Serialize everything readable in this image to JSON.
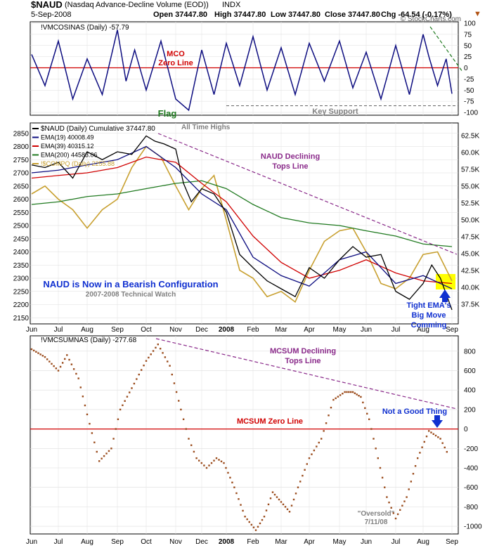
{
  "header": {
    "symbol": "$NAUD",
    "description": "(Nasdaq Advance-Decline Volume (EOD))",
    "exchange": "INDX",
    "date": "5-Sep-2008",
    "open": "Open 37447.80",
    "high": "High 37447.80",
    "low": "Low 37447.80",
    "close": "Close 37447.80",
    "chg": "Chg -64.54 (-0.17%)",
    "watermark": "© StockCharts.com"
  },
  "colors": {
    "navy": "#0d0d80",
    "red": "#d00000",
    "green": "#207a20",
    "gold": "#c8a030",
    "purple": "#8a2a8a",
    "brown": "#9a4a1a",
    "yellow": "#ffff00",
    "blue": "#1030d0"
  },
  "x_axis": {
    "labels": [
      "Jun",
      "Jul",
      "Aug",
      "Sep",
      "Oct",
      "Nov",
      "Dec",
      "2008",
      "Feb",
      "Mar",
      "Apr",
      "May",
      "Jun",
      "Jul",
      "Aug",
      "Sep"
    ]
  },
  "chart_data": [
    {
      "type": "line",
      "panel": "mco",
      "legend": "!VMCOSINAS (Daily) -57.79",
      "ylim": [
        -100,
        100
      ],
      "yticks": [
        "100",
        "75",
        "50",
        "25",
        "0",
        "-25",
        "-50",
        "-75",
        "-100"
      ],
      "zero_line": 0,
      "key_support": -85,
      "series": [
        {
          "name": "!VMCOSINAS (Daily)",
          "x_month_index": [
            0,
            0.5,
            1,
            1.5,
            2,
            2.5,
            3,
            3.3,
            3.6,
            4,
            4.5,
            5,
            5.5,
            6,
            6.5,
            7,
            7.5,
            8,
            8.5,
            9,
            9.5,
            10,
            10.5,
            11,
            11.5,
            12,
            12.5,
            13,
            13.5,
            14,
            14.2,
            14.5,
            14.8,
            15
          ],
          "values": [
            30,
            -40,
            60,
            -70,
            20,
            -60,
            85,
            -30,
            40,
            -50,
            60,
            -70,
            -95,
            40,
            -60,
            55,
            -40,
            70,
            -50,
            45,
            -60,
            55,
            -30,
            60,
            -45,
            35,
            -70,
            50,
            -60,
            75,
            25,
            -40,
            20,
            -58
          ]
        }
      ],
      "annotations": [
        "MCO",
        "Zero Line",
        "Flag",
        "Key Support"
      ]
    },
    {
      "type": "line",
      "panel": "naud",
      "ylim": [
        2140,
        2860
      ],
      "yticks": [
        "2850",
        "2800",
        "2750",
        "2700",
        "2650",
        "2600",
        "2550",
        "2500",
        "2450",
        "2400",
        "2350",
        "2300",
        "2250",
        "2200",
        "2150"
      ],
      "yticks_right": [
        "62.5K",
        "60.0K",
        "57.5K",
        "55.0K",
        "52.5K",
        "50.0K",
        "47.5K",
        "45.0K",
        "42.5K",
        "40.0K",
        "37.5K"
      ],
      "series": [
        {
          "name": "$NAUD (Daily) Cumulative",
          "legend": "$NAUD (Daily) Cumulative 37447.80",
          "x_month_index": [
            0,
            0.5,
            1,
            1.5,
            2,
            2.5,
            3,
            3.5,
            4,
            4.3,
            4.6,
            5,
            5.3,
            5.6,
            6,
            6.5,
            7,
            7.5,
            8,
            8.5,
            9,
            9.5,
            10,
            10.5,
            11,
            11.5,
            12,
            12.5,
            13,
            13.5,
            14,
            14.3,
            14.6,
            15
          ],
          "values": [
            2730,
            2720,
            2740,
            2680,
            2780,
            2750,
            2780,
            2770,
            2840,
            2820,
            2810,
            2790,
            2660,
            2590,
            2640,
            2620,
            2550,
            2390,
            2340,
            2290,
            2260,
            2230,
            2340,
            2300,
            2370,
            2420,
            2380,
            2390,
            2250,
            2220,
            2280,
            2350,
            2300,
            2180
          ]
        },
        {
          "name": "EMA(19)",
          "legend": "EMA(19) 40008.49",
          "x_month_index": [
            0,
            1,
            2,
            3,
            4,
            5,
            6,
            7,
            8,
            9,
            10,
            11,
            12,
            13,
            14,
            15
          ],
          "values": [
            2700,
            2710,
            2730,
            2750,
            2800,
            2720,
            2620,
            2560,
            2380,
            2310,
            2270,
            2370,
            2400,
            2280,
            2310,
            2260
          ]
        },
        {
          "name": "EMA(39)",
          "legend": "EMA(39) 40315.12",
          "x_month_index": [
            0,
            1,
            2,
            3,
            4,
            5,
            6,
            7,
            8,
            9,
            10,
            11,
            12,
            13,
            14,
            15
          ],
          "values": [
            2680,
            2690,
            2700,
            2720,
            2760,
            2740,
            2660,
            2590,
            2460,
            2360,
            2300,
            2330,
            2370,
            2320,
            2290,
            2280
          ]
        },
        {
          "name": "EMA(200)",
          "legend": "EMA(200) 44583.06",
          "x_month_index": [
            0,
            1,
            2,
            3,
            4,
            5,
            6,
            7,
            8,
            9,
            10,
            11,
            12,
            13,
            14,
            15
          ],
          "values": [
            2580,
            2590,
            2610,
            2620,
            2640,
            2660,
            2670,
            2640,
            2580,
            2530,
            2510,
            2500,
            2480,
            2460,
            2430,
            2420
          ]
        },
        {
          "name": "!$COMPQ (Daily)",
          "legend": "!$COMPQ (Daily) 2255.88",
          "x_month_index": [
            0,
            0.5,
            1,
            1.5,
            2,
            2.5,
            3,
            3.5,
            4,
            4.5,
            5,
            5.5,
            6,
            6.5,
            7,
            7.5,
            8,
            8.5,
            9,
            9.5,
            10,
            10.5,
            11,
            11.5,
            12,
            12.5,
            13,
            13.5,
            14,
            14.5,
            15
          ],
          "values": [
            2620,
            2650,
            2600,
            2560,
            2490,
            2560,
            2600,
            2720,
            2800,
            2760,
            2650,
            2560,
            2640,
            2690,
            2520,
            2330,
            2300,
            2230,
            2250,
            2210,
            2330,
            2440,
            2480,
            2490,
            2400,
            2280,
            2260,
            2300,
            2390,
            2400,
            2290
          ]
        }
      ],
      "annotations": [
        "All Time Highs",
        "NAUD Declining",
        "Tops Line",
        "NAUD is Now in a Bearish Configuration",
        "2007-2008 Technical Watch",
        "Tight EMA's",
        "Big Move",
        "Comming"
      ]
    },
    {
      "type": "scatter",
      "panel": "mcsum",
      "legend": "!VMCSUMNAS (Daily) -277.68",
      "ylim": [
        -1050,
        900
      ],
      "yticks": [
        "800",
        "600",
        "400",
        "200",
        "0",
        "-200",
        "-400",
        "-600",
        "-800",
        "-1000"
      ],
      "zero_line": 0,
      "series": [
        {
          "name": "!VMCSUMNAS (Daily)",
          "x_month_index": [
            0,
            0.5,
            1,
            1.3,
            1.7,
            2,
            2.4,
            2.8,
            3.1,
            3.5,
            4,
            4.4,
            4.8,
            5.2,
            5.5,
            5.8,
            6.2,
            6.6,
            6.9,
            7.3,
            7.7,
            8.1,
            8.4,
            8.7,
            9,
            9.3,
            9.6,
            10,
            10.4,
            10.8,
            11.2,
            11.5,
            11.8,
            12.1,
            12.4,
            12.7,
            13,
            13.4,
            13.8,
            14.2,
            14.6,
            14.9
          ],
          "values": [
            820,
            740,
            600,
            760,
            520,
            150,
            -330,
            -200,
            200,
            420,
            700,
            870,
            650,
            200,
            -100,
            -300,
            -400,
            -300,
            -350,
            -600,
            -900,
            -1040,
            -900,
            -650,
            -750,
            -850,
            -600,
            -300,
            -100,
            300,
            380,
            380,
            330,
            100,
            -300,
            -700,
            -920,
            -700,
            -300,
            -20,
            -100,
            -280
          ]
        }
      ],
      "annotations": [
        "MCSUM Declining",
        "Tops Line",
        "MCSUM Zero Line",
        "Not a Good Thing",
        "\"Oversold\"",
        "7/11/08"
      ]
    }
  ]
}
